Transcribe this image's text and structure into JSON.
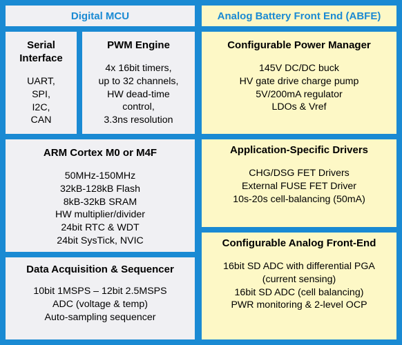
{
  "digital_header": "Digital MCU",
  "analog_header": "Analog Battery Front End (ABFE)",
  "serial": {
    "title": [
      "Serial",
      "Interface"
    ],
    "body": [
      "UART,",
      "SPI,",
      "I2C,",
      "CAN"
    ]
  },
  "pwm": {
    "title": [
      "PWM Engine"
    ],
    "body": [
      "4x 16bit timers,",
      "up to 32 channels,",
      "HW dead-time",
      "control,",
      "3.3ns resolution"
    ]
  },
  "cpu": {
    "title": [
      "ARM Cortex M0 or M4F"
    ],
    "body": [
      "50MHz-150MHz",
      "32kB-128kB Flash",
      "8kB-32kB SRAM",
      "HW multiplier/divider",
      "24bit RTC & WDT",
      "24bit SysTick, NVIC"
    ]
  },
  "daq": {
    "title": [
      "Data Acquisition & Sequencer"
    ],
    "body": [
      "10bit 1MSPS – 12bit 2.5MSPS",
      "ADC (voltage & temp)",
      "Auto-sampling sequencer"
    ]
  },
  "power": {
    "title": [
      "Configurable Power Manager"
    ],
    "body": [
      "145V DC/DC buck",
      "HV gate drive charge pump",
      "5V/200mA regulator",
      "LDOs & Vref"
    ]
  },
  "drivers": {
    "title": [
      "Application-Specific Drivers"
    ],
    "body": [
      "CHG/DSG FET Drivers",
      "External FUSE FET Driver",
      "10s-20s cell-balancing (50mA)"
    ]
  },
  "afe": {
    "title": [
      "Configurable Analog Front-End"
    ],
    "body": [
      "16bit SD ADC with differential PGA",
      "(current sensing)",
      "16bit SD ADC (cell balancing)",
      "PWR monitoring & 2-level OCP"
    ]
  }
}
